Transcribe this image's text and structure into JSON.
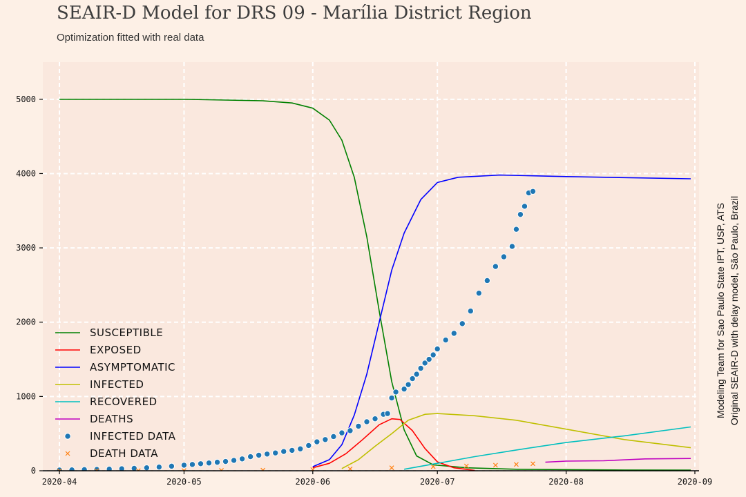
{
  "title": "SEAIR-D Model for DRS 09 - Marília District Region",
  "subtitle": "Optimization fitted with real data",
  "side_note": {
    "line1": "Modeling Team for Sao Paulo State IPT, USP, ATS",
    "line2": "Original SEAIR-D with delay model, São Paulo, Brazil"
  },
  "colors": {
    "background": "#fdf0e6",
    "plot_background": "#fae8de",
    "grid": "#ffffff",
    "susceptible": "#008000",
    "exposed": "#ff0000",
    "asymptomatic": "#0000ff",
    "infected": "#bfbf00",
    "recovered": "#00bfbf",
    "deaths": "#bf00bf",
    "infected_data": "#1f77b4",
    "death_data": "#ff7f0e"
  },
  "chart_data": {
    "type": "line",
    "x_type": "date",
    "xlim": [
      "2020-03-28",
      "2020-09-02"
    ],
    "ylim": [
      0,
      5500
    ],
    "grid": true,
    "legend_position": "bottom-left",
    "x_ticks": [
      "2020-04-01",
      "2020-05-01",
      "2020-06-01",
      "2020-07-01",
      "2020-08-01",
      "2020-09-01"
    ],
    "x_tick_labels": [
      "2020-04",
      "2020-05",
      "2020-06",
      "2020-07",
      "2020-08",
      "2020-09"
    ],
    "y_ticks": [
      0,
      1000,
      2000,
      3000,
      4000,
      5000
    ],
    "y_tick_labels": [
      "0",
      "1000",
      "2000",
      "3000",
      "4000",
      "5000"
    ],
    "series": [
      {
        "name": "Susceptible",
        "style": "line",
        "color_key": "susceptible",
        "points": [
          [
            "2020-04-01",
            5000
          ],
          [
            "2020-05-01",
            5000
          ],
          [
            "2020-05-20",
            4980
          ],
          [
            "2020-05-27",
            4950
          ],
          [
            "2020-06-01",
            4880
          ],
          [
            "2020-06-05",
            4720
          ],
          [
            "2020-06-08",
            4450
          ],
          [
            "2020-06-11",
            3950
          ],
          [
            "2020-06-14",
            3150
          ],
          [
            "2020-06-17",
            2150
          ],
          [
            "2020-06-20",
            1200
          ],
          [
            "2020-06-23",
            550
          ],
          [
            "2020-06-26",
            200
          ],
          [
            "2020-06-30",
            80
          ],
          [
            "2020-07-08",
            40
          ],
          [
            "2020-07-20",
            20
          ],
          [
            "2020-08-15",
            10
          ],
          [
            "2020-08-31",
            8
          ]
        ]
      },
      {
        "name": "Exposed",
        "style": "line",
        "color_key": "exposed",
        "points": [
          [
            "2020-06-01",
            40
          ],
          [
            "2020-06-05",
            100
          ],
          [
            "2020-06-09",
            230
          ],
          [
            "2020-06-13",
            420
          ],
          [
            "2020-06-17",
            620
          ],
          [
            "2020-06-20",
            700
          ],
          [
            "2020-06-22",
            690
          ],
          [
            "2020-06-25",
            540
          ],
          [
            "2020-06-28",
            300
          ],
          [
            "2020-07-01",
            120
          ],
          [
            "2020-07-05",
            40
          ],
          [
            "2020-07-10",
            5
          ]
        ]
      },
      {
        "name": "Asymptomatic",
        "style": "line",
        "color_key": "asymptomatic",
        "points": [
          [
            "2020-06-01",
            55
          ],
          [
            "2020-06-05",
            150
          ],
          [
            "2020-06-08",
            350
          ],
          [
            "2020-06-11",
            750
          ],
          [
            "2020-06-14",
            1300
          ],
          [
            "2020-06-17",
            2000
          ],
          [
            "2020-06-20",
            2700
          ],
          [
            "2020-06-23",
            3200
          ],
          [
            "2020-06-27",
            3650
          ],
          [
            "2020-07-01",
            3880
          ],
          [
            "2020-07-06",
            3950
          ],
          [
            "2020-07-16",
            3980
          ],
          [
            "2020-08-01",
            3960
          ],
          [
            "2020-08-31",
            3930
          ]
        ]
      },
      {
        "name": "Infected",
        "style": "line",
        "color_key": "infected",
        "points": [
          [
            "2020-06-08",
            30
          ],
          [
            "2020-06-12",
            150
          ],
          [
            "2020-06-16",
            330
          ],
          [
            "2020-06-20",
            500
          ],
          [
            "2020-06-24",
            680
          ],
          [
            "2020-06-28",
            760
          ],
          [
            "2020-07-01",
            770
          ],
          [
            "2020-07-10",
            740
          ],
          [
            "2020-07-20",
            680
          ],
          [
            "2020-08-01",
            560
          ],
          [
            "2020-08-15",
            420
          ],
          [
            "2020-08-31",
            310
          ]
        ]
      },
      {
        "name": "Recovered",
        "style": "line",
        "color_key": "recovered",
        "points": [
          [
            "2020-06-23",
            20
          ],
          [
            "2020-07-01",
            100
          ],
          [
            "2020-07-10",
            190
          ],
          [
            "2020-07-20",
            280
          ],
          [
            "2020-08-01",
            380
          ],
          [
            "2020-08-15",
            470
          ],
          [
            "2020-08-31",
            590
          ]
        ]
      },
      {
        "name": "Deaths",
        "style": "line",
        "color_key": "deaths",
        "points": [
          [
            "2020-07-27",
            115
          ],
          [
            "2020-08-01",
            130
          ],
          [
            "2020-08-10",
            135
          ],
          [
            "2020-08-20",
            160
          ],
          [
            "2020-08-31",
            165
          ]
        ]
      },
      {
        "name": "Infected Data",
        "style": "markers",
        "marker": "circle",
        "color_key": "infected_data",
        "points": [
          [
            "2020-04-01",
            10
          ],
          [
            "2020-04-04",
            12
          ],
          [
            "2020-04-07",
            15
          ],
          [
            "2020-04-10",
            18
          ],
          [
            "2020-04-13",
            22
          ],
          [
            "2020-04-16",
            27
          ],
          [
            "2020-04-19",
            33
          ],
          [
            "2020-04-22",
            40
          ],
          [
            "2020-04-25",
            50
          ],
          [
            "2020-04-28",
            62
          ],
          [
            "2020-05-01",
            75
          ],
          [
            "2020-05-03",
            85
          ],
          [
            "2020-05-05",
            95
          ],
          [
            "2020-05-07",
            105
          ],
          [
            "2020-05-09",
            115
          ],
          [
            "2020-05-11",
            125
          ],
          [
            "2020-05-13",
            140
          ],
          [
            "2020-05-15",
            160
          ],
          [
            "2020-05-17",
            190
          ],
          [
            "2020-05-19",
            210
          ],
          [
            "2020-05-21",
            225
          ],
          [
            "2020-05-23",
            240
          ],
          [
            "2020-05-25",
            260
          ],
          [
            "2020-05-27",
            275
          ],
          [
            "2020-05-29",
            295
          ],
          [
            "2020-05-31",
            340
          ],
          [
            "2020-06-02",
            390
          ],
          [
            "2020-06-04",
            420
          ],
          [
            "2020-06-06",
            460
          ],
          [
            "2020-06-08",
            510
          ],
          [
            "2020-06-10",
            540
          ],
          [
            "2020-06-12",
            600
          ],
          [
            "2020-06-14",
            660
          ],
          [
            "2020-06-16",
            700
          ],
          [
            "2020-06-18",
            760
          ],
          [
            "2020-06-19",
            770
          ],
          [
            "2020-06-20",
            980
          ],
          [
            "2020-06-21",
            1060
          ],
          [
            "2020-06-23",
            1100
          ],
          [
            "2020-06-24",
            1160
          ],
          [
            "2020-06-25",
            1240
          ],
          [
            "2020-06-26",
            1300
          ],
          [
            "2020-06-27",
            1380
          ],
          [
            "2020-06-28",
            1450
          ],
          [
            "2020-06-29",
            1500
          ],
          [
            "2020-06-30",
            1560
          ],
          [
            "2020-07-01",
            1640
          ],
          [
            "2020-07-03",
            1760
          ],
          [
            "2020-07-05",
            1850
          ],
          [
            "2020-07-07",
            1980
          ],
          [
            "2020-07-09",
            2150
          ],
          [
            "2020-07-11",
            2390
          ],
          [
            "2020-07-13",
            2560
          ],
          [
            "2020-07-15",
            2750
          ],
          [
            "2020-07-17",
            2880
          ],
          [
            "2020-07-19",
            3020
          ],
          [
            "2020-07-20",
            3250
          ],
          [
            "2020-07-21",
            3450
          ],
          [
            "2020-07-22",
            3560
          ],
          [
            "2020-07-23",
            3740
          ],
          [
            "2020-07-24",
            3760
          ]
        ]
      },
      {
        "name": "Death Data",
        "style": "markers",
        "marker": "x",
        "color_key": "death_data",
        "points": [
          [
            "2020-04-01",
            0
          ],
          [
            "2020-04-10",
            1
          ],
          [
            "2020-04-20",
            2
          ],
          [
            "2020-05-01",
            3
          ],
          [
            "2020-05-10",
            5
          ],
          [
            "2020-05-20",
            8
          ],
          [
            "2020-06-01",
            15
          ],
          [
            "2020-06-10",
            25
          ],
          [
            "2020-06-20",
            40
          ],
          [
            "2020-06-30",
            55
          ],
          [
            "2020-07-08",
            65
          ],
          [
            "2020-07-15",
            75
          ],
          [
            "2020-07-20",
            85
          ],
          [
            "2020-07-24",
            95
          ]
        ]
      }
    ]
  }
}
